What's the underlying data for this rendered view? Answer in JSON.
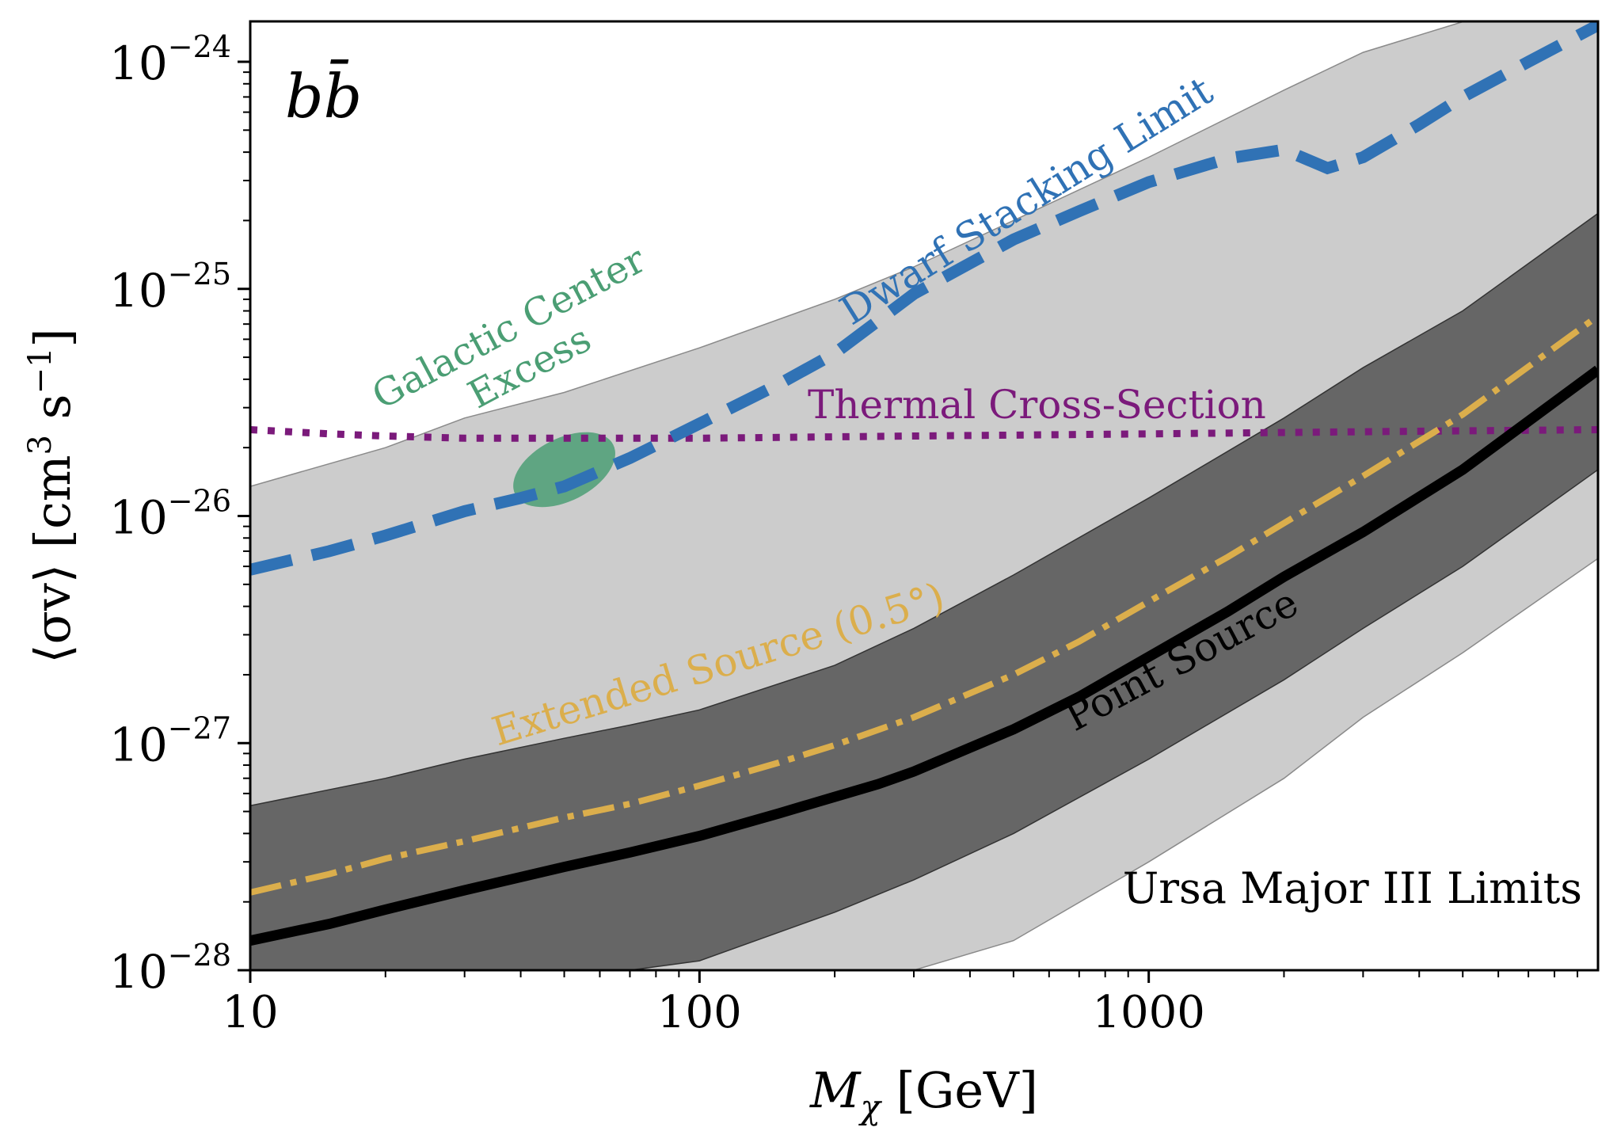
{
  "chart_data": {
    "type": "line",
    "title": "",
    "channel_label": "bb̄",
    "xlabel": {
      "main": "M",
      "sub": "χ",
      "unit": " [GeV]"
    },
    "ylabel": {
      "open": "⟨σv⟩ [cm",
      "sup": "3",
      "mid": " s",
      "sup2": "−1",
      "close": "]"
    },
    "x_scale": "log",
    "y_scale": "log",
    "xlim": [
      10,
      10000
    ],
    "ylim": [
      1e-28,
      1.5e-24
    ],
    "x_ticks": [
      {
        "value": 10,
        "label": "10"
      },
      {
        "value": 100,
        "label": "100"
      },
      {
        "value": 1000,
        "label": "1000"
      }
    ],
    "y_ticks": [
      {
        "value": 1e-28,
        "base": "10",
        "exp": "−28"
      },
      {
        "value": 1e-27,
        "base": "10",
        "exp": "−27"
      },
      {
        "value": 1e-26,
        "base": "10",
        "exp": "−26"
      },
      {
        "value": 1e-25,
        "base": "10",
        "exp": "−25"
      },
      {
        "value": 1e-24,
        "base": "10",
        "exp": "−24"
      }
    ],
    "grid": false,
    "colors": {
      "band_light": "#cccccc",
      "band_dark": "#666666",
      "point_source": "#000000",
      "extended_source": "#dbae4c",
      "dwarf_stacking": "#3072b5",
      "thermal": "#7b1a7b",
      "gce": "#4b9e74"
    },
    "bands": [
      {
        "name": "outer-band",
        "x": [
          10,
          20,
          30,
          50,
          100,
          200,
          300,
          500,
          1000,
          2000,
          3000,
          5000,
          10000
        ],
        "upper": [
          1.35e-26,
          2e-26,
          2.7e-26,
          3.5e-26,
          5.5e-26,
          9e-26,
          1.25e-25,
          2e-25,
          3.8e-25,
          7.5e-25,
          1.1e-24,
          1.5e-24,
          1.5e-24
        ],
        "lower": [
          1e-28,
          1e-28,
          1e-28,
          1e-28,
          1e-28,
          1e-28,
          1e-28,
          1.35e-28,
          3e-28,
          7e-28,
          1.3e-27,
          2.5e-27,
          6.5e-27
        ]
      },
      {
        "name": "inner-band",
        "x": [
          10,
          20,
          30,
          50,
          70,
          100,
          200,
          300,
          500,
          1000,
          2000,
          3000,
          5000,
          10000
        ],
        "upper": [
          5.3e-28,
          7e-28,
          8.5e-28,
          1.05e-27,
          1.2e-27,
          1.4e-27,
          2.2e-27,
          3.2e-27,
          5.5e-27,
          1.2e-26,
          2.7e-26,
          4.5e-26,
          8e-26,
          2.15e-25
        ],
        "lower": [
          1e-28,
          1e-28,
          1e-28,
          1e-28,
          1e-28,
          1.1e-28,
          1.8e-28,
          2.5e-28,
          4e-28,
          8.5e-28,
          1.9e-27,
          3.2e-27,
          6e-27,
          1.6e-26
        ]
      }
    ],
    "series": [
      {
        "name": "Point Source",
        "style": "solid",
        "x": [
          10,
          15,
          20,
          30,
          50,
          70,
          100,
          150,
          200,
          250,
          300,
          500,
          700,
          1000,
          1500,
          2000,
          3000,
          5000,
          10000
        ],
        "y": [
          1.35e-28,
          1.6e-28,
          1.85e-28,
          2.25e-28,
          2.85e-28,
          3.3e-28,
          3.9e-28,
          4.9e-28,
          5.8e-28,
          6.6e-28,
          7.5e-28,
          1.15e-27,
          1.6e-27,
          2.4e-27,
          3.8e-27,
          5.4e-27,
          8.5e-27,
          1.6e-26,
          4.4e-26
        ]
      },
      {
        "name": "Extended Source (0.5°)",
        "style": "dashdot",
        "x": [
          10,
          15,
          20,
          30,
          50,
          70,
          100,
          150,
          200,
          300,
          500,
          700,
          1000,
          1500,
          2000,
          3000,
          5000,
          10000
        ],
        "y": [
          2.2e-28,
          2.65e-28,
          3.1e-28,
          3.7e-28,
          4.7e-28,
          5.4e-28,
          6.5e-28,
          8.2e-28,
          9.8e-28,
          1.3e-27,
          2e-27,
          2.8e-27,
          4.2e-27,
          6.6e-27,
          9.3e-27,
          1.5e-26,
          2.8e-26,
          7.6e-26
        ]
      },
      {
        "name": "Dwarf Stacking Limit",
        "style": "dashed",
        "x": [
          10,
          15,
          20,
          30,
          40,
          50,
          70,
          100,
          150,
          200,
          300,
          500,
          700,
          1000,
          1500,
          2000,
          2500,
          3000,
          4000,
          5000,
          7000,
          10000
        ],
        "y": [
          5.8e-27,
          7e-27,
          8.2e-27,
          1.05e-26,
          1.2e-26,
          1.35e-26,
          1.8e-26,
          2.55e-26,
          3.8e-26,
          5.2e-26,
          9.5e-26,
          1.65e-25,
          2.2e-25,
          2.95e-25,
          3.75e-25,
          4.1e-25,
          3.4e-25,
          3.8e-25,
          5.3e-25,
          7e-25,
          1e-24,
          1.45e-24
        ]
      },
      {
        "name": "Thermal Cross-Section",
        "style": "dotted",
        "x": [
          10,
          15,
          20,
          30,
          50,
          100,
          300,
          1000,
          3000,
          10000
        ],
        "y": [
          2.4e-26,
          2.3e-26,
          2.25e-26,
          2.2e-26,
          2.2e-26,
          2.2e-26,
          2.25e-26,
          2.3e-26,
          2.35e-26,
          2.4e-26
        ]
      }
    ],
    "galactic_center_excess": {
      "center_mass_gev": 50,
      "center_sigmav": 1.6e-26,
      "mass_range_gev": [
        37,
        65
      ],
      "sigmav_range": [
        1.05e-26,
        2.25e-26
      ]
    },
    "annotations": {
      "gce_line1": "Galactic Center",
      "gce_line2": "Excess",
      "thermal": "Thermal Cross-Section",
      "dwarf": "Dwarf Stacking Limit",
      "extended": "Extended Source (0.5°)",
      "point": "Point Source",
      "ursa": "Ursa Major III Limits"
    }
  }
}
